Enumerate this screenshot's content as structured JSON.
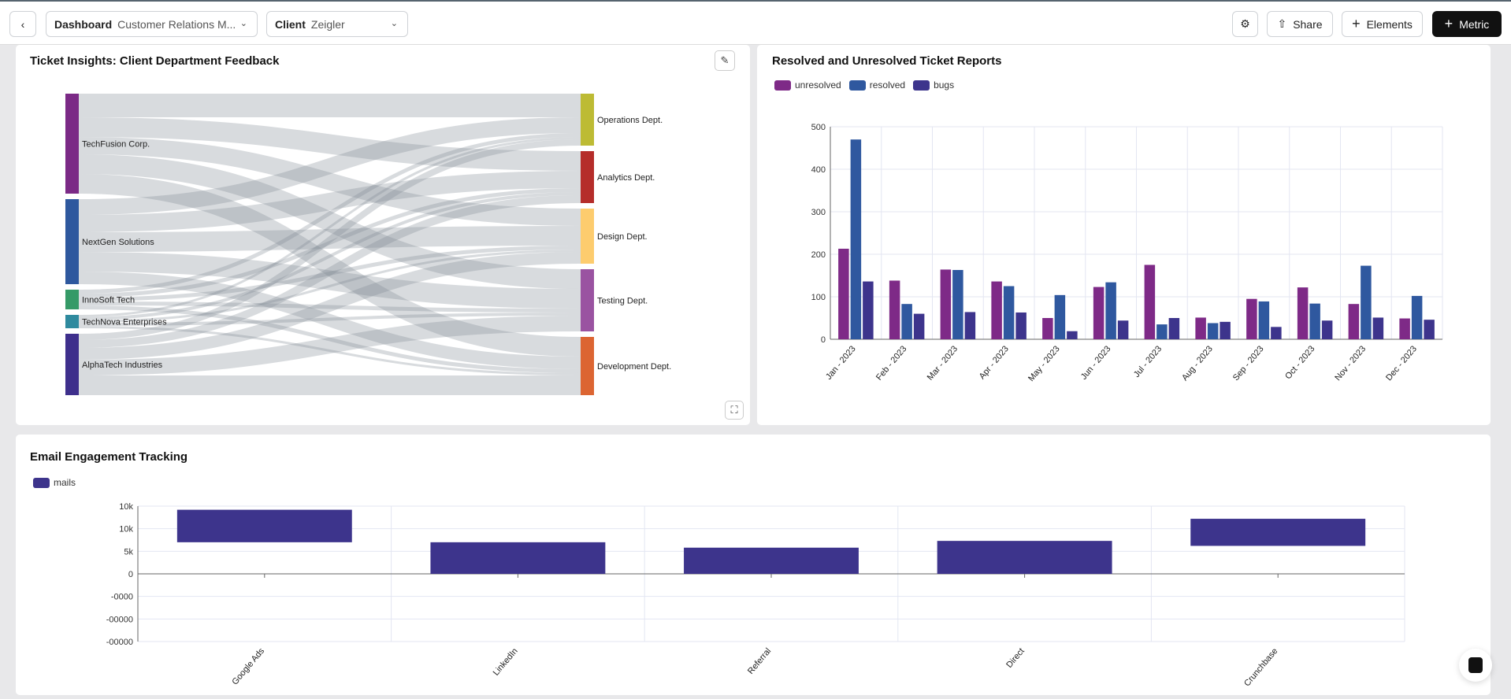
{
  "header": {
    "back_icon": "chevron-left-icon",
    "dashboard_label": "Dashboard",
    "dashboard_value": "Customer Relations M...",
    "client_label": "Client",
    "client_value": "Zeigler",
    "settings_icon": "gear-icon",
    "share_label": "Share",
    "elements_label": "Elements",
    "metric_label": "Metric"
  },
  "sankey": {
    "title": "Ticket Insights: Client Department Feedback",
    "edit_icon": "pencil-icon",
    "expand_icon": "expand-icon",
    "chart_data": {
      "type": "sankey",
      "sources": [
        {
          "name": "TechFusion Corp.",
          "color": "#7b2a86"
        },
        {
          "name": "NextGen Solutions",
          "color": "#2e589e"
        },
        {
          "name": "InnoSoft Tech",
          "color": "#359a67"
        },
        {
          "name": "TechNova Enterprises",
          "color": "#2f8a9e"
        },
        {
          "name": "AlphaTech Industries",
          "color": "#3e2f8c"
        }
      ],
      "targets": [
        {
          "name": "Operations Dept.",
          "color": "#bdbb34"
        },
        {
          "name": "Analytics Dept.",
          "color": "#b52d2a"
        },
        {
          "name": "Design Dept.",
          "color": "#fdcc6e"
        },
        {
          "name": "Testing Dept.",
          "color": "#9a53a1"
        },
        {
          "name": "Development Dept.",
          "color": "#dc6532"
        }
      ],
      "links": [
        [
          30,
          25,
          22,
          25,
          25
        ],
        [
          20,
          22,
          25,
          25,
          16
        ],
        [
          5,
          5,
          5,
          5,
          5
        ],
        [
          3,
          4,
          3,
          4,
          3
        ],
        [
          8,
          10,
          15,
          20,
          25
        ]
      ]
    }
  },
  "tickets": {
    "title": "Resolved and Unresolved Ticket Reports",
    "chart_data": {
      "type": "bar",
      "categories": [
        "Jan - 2023",
        "Feb - 2023",
        "Mar - 2023",
        "Apr - 2023",
        "May - 2023",
        "Jun - 2023",
        "Jul - 2023",
        "Aug - 2023",
        "Sep - 2023",
        "Oct - 2023",
        "Nov - 2023",
        "Dec - 2023"
      ],
      "series": [
        {
          "name": "unresolved",
          "color": "#7e2a87",
          "values": [
            213,
            138,
            164,
            136,
            50,
            123,
            175,
            51,
            95,
            122,
            83,
            49
          ]
        },
        {
          "name": "resolved",
          "color": "#2f589f",
          "values": [
            470,
            83,
            163,
            125,
            104,
            134,
            35,
            38,
            89,
            84,
            173,
            102
          ]
        },
        {
          "name": "bugs",
          "color": "#3d348c",
          "values": [
            136,
            60,
            64,
            63,
            19,
            44,
            50,
            41,
            29,
            44,
            51,
            46
          ]
        }
      ],
      "ylim": [
        0,
        500
      ],
      "yticks": [
        "0",
        "100",
        "200",
        "300",
        "400",
        "500"
      ],
      "grid": true,
      "legend": "top-left"
    }
  },
  "email": {
    "title": "Email Engagement Tracking",
    "chart_data": {
      "type": "floating-bar",
      "categories": [
        "Google Ads",
        "LinkedIn",
        "Referral",
        "Direct",
        "Crunchbase"
      ],
      "series": [
        {
          "name": "mails",
          "color": "#3d348c",
          "ranges": [
            [
              7000,
              14200
            ],
            [
              0,
              7000
            ],
            [
              0,
              5800
            ],
            [
              0,
              7300
            ],
            [
              6200,
              12200
            ]
          ]
        }
      ],
      "ylim": [
        -15000,
        15000
      ],
      "yticks": [
        "-00000",
        "-00000",
        "-0000",
        "0",
        "5k",
        "10k",
        "10k"
      ],
      "grid": true,
      "legend": "top-left"
    }
  },
  "chat_icon": "chat-bubble-icon"
}
